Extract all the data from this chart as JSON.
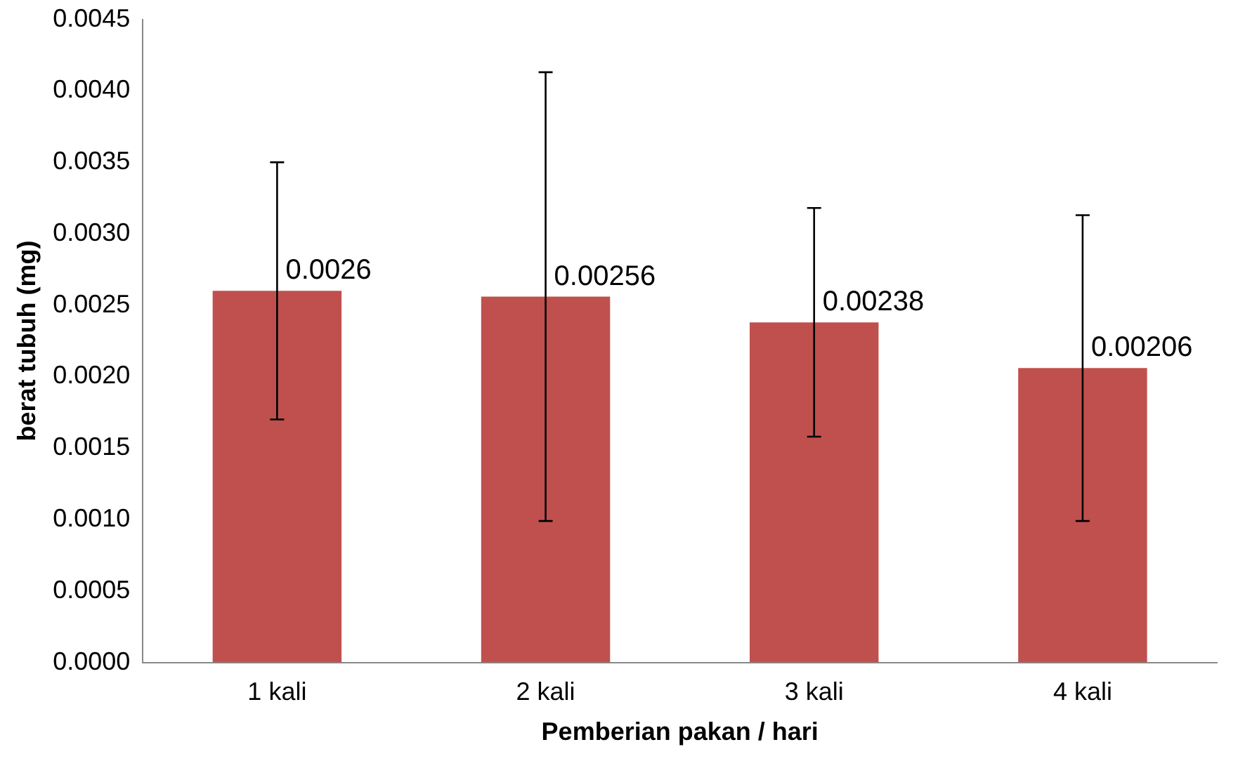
{
  "chart_data": {
    "type": "bar",
    "xlabel": "Pemberian pakan / hari",
    "ylabel": "berat tubuh (mg)",
    "categories": [
      "1 kali",
      "2 kali",
      "3 kali",
      "4 kali"
    ],
    "values": [
      0.0026,
      0.00256,
      0.00238,
      0.00206
    ],
    "errors": [
      0.0009,
      0.00157,
      0.0008,
      0.00107
    ],
    "color": "#c0504d",
    "ylim": [
      0,
      0.0045
    ],
    "yticks": [
      {
        "value": 0,
        "label": "0.0000"
      },
      {
        "value": 0.0005,
        "label": "0.0005"
      },
      {
        "value": 0.001,
        "label": "0.0010"
      },
      {
        "value": 0.0015,
        "label": "0.0015"
      },
      {
        "value": 0.002,
        "label": "0.0020"
      },
      {
        "value": 0.0025,
        "label": "0.0025"
      },
      {
        "value": 0.003,
        "label": "0.0030"
      },
      {
        "value": 0.0035,
        "label": "0.0035"
      },
      {
        "value": 0.004,
        "label": "0.0040"
      },
      {
        "value": 0.0045,
        "label": "0.0045"
      }
    ],
    "data_labels": true,
    "grid": false,
    "legend": false
  }
}
